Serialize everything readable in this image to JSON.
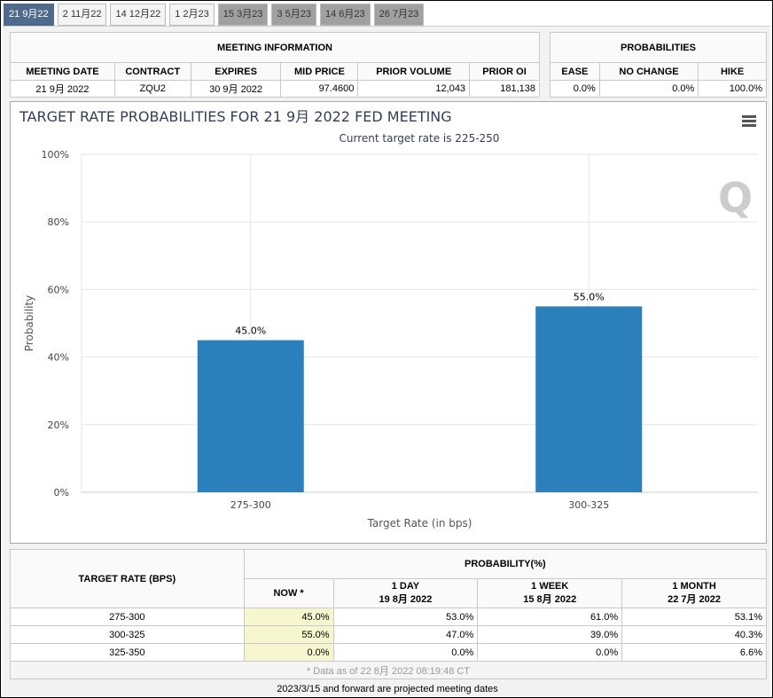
{
  "tabs": [
    {
      "label": "21 9月22",
      "state": "active"
    },
    {
      "label": "2 11月22",
      "state": "normal"
    },
    {
      "label": "14 12月22",
      "state": "normal"
    },
    {
      "label": "1 2月23",
      "state": "normal"
    },
    {
      "label": "15 3月23",
      "state": "projected"
    },
    {
      "label": "3 5月23",
      "state": "projected"
    },
    {
      "label": "14 6月23",
      "state": "projected"
    },
    {
      "label": "26 7月23",
      "state": "projected"
    }
  ],
  "meeting": {
    "title": "MEETING INFORMATION",
    "headers": [
      "MEETING DATE",
      "CONTRACT",
      "EXPIRES",
      "MID PRICE",
      "PRIOR VOLUME",
      "PRIOR OI"
    ],
    "values": [
      "21 9月 2022",
      "ZQU2",
      "30 9月 2022",
      "97.4600",
      "12,043",
      "181,138"
    ]
  },
  "probabilities": {
    "title": "PROBABILITIES",
    "headers": [
      "EASE",
      "NO CHANGE",
      "HIKE"
    ],
    "values": [
      "0.0%",
      "0.0%",
      "100.0%"
    ]
  },
  "chart_data": {
    "type": "bar",
    "title": "TARGET RATE PROBABILITIES FOR 21 9月 2022 FED MEETING",
    "subtitle": "Current target rate is 225-250",
    "xlabel": "Target Rate (in bps)",
    "ylabel": "Probability",
    "categories": [
      "275-300",
      "300-325"
    ],
    "values": [
      45.0,
      55.0
    ],
    "data_labels": [
      "45.0%",
      "55.0%"
    ],
    "ylim": [
      0,
      100
    ],
    "yticks": [
      "0%",
      "20%",
      "40%",
      "60%",
      "80%",
      "100%"
    ],
    "grid": true,
    "color": "#2b7fbb"
  },
  "prob_table": {
    "rate_header": "TARGET RATE (BPS)",
    "prob_header": "PROBABILITY(%)",
    "cols": [
      {
        "l1": "NOW *",
        "l2": ""
      },
      {
        "l1": "1 DAY",
        "l2": "19 8月 2022"
      },
      {
        "l1": "1 WEEK",
        "l2": "15 8月 2022"
      },
      {
        "l1": "1 MONTH",
        "l2": "22 7月 2022"
      }
    ],
    "rows": [
      [
        "275-300",
        "45.0%",
        "53.0%",
        "61.0%",
        "53.1%"
      ],
      [
        "300-325",
        "55.0%",
        "47.0%",
        "39.0%",
        "40.3%"
      ],
      [
        "325-350",
        "0.0%",
        "0.0%",
        "0.0%",
        "6.6%"
      ]
    ],
    "note": "* Data as of 22 8月 2022 08:19:48 CT"
  },
  "footer": "2023/3/15 and forward are projected meeting dates"
}
